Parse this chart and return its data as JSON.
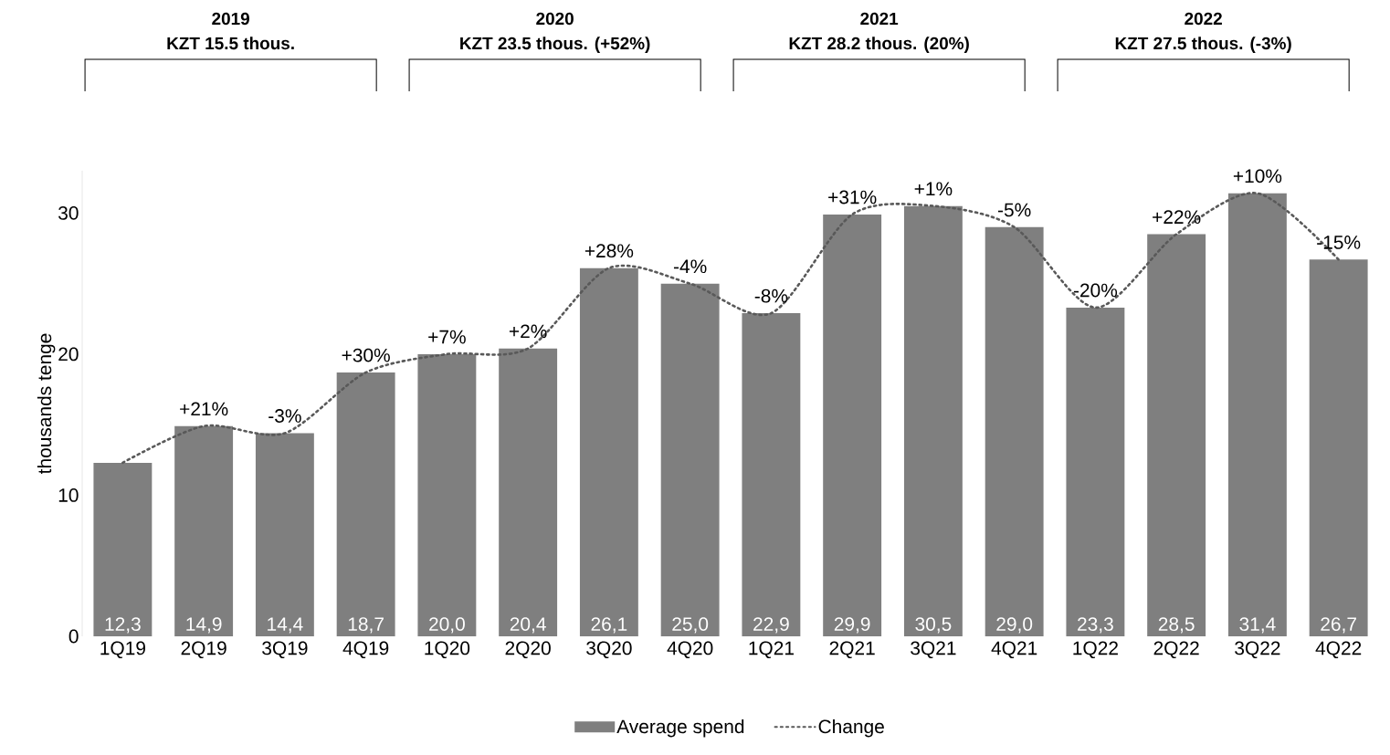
{
  "chart_data": {
    "type": "bar",
    "categories": [
      "1Q19",
      "2Q19",
      "3Q19",
      "4Q19",
      "1Q20",
      "2Q20",
      "3Q20",
      "4Q20",
      "1Q21",
      "2Q21",
      "3Q21",
      "4Q21",
      "1Q22",
      "2Q22",
      "3Q22",
      "4Q22"
    ],
    "series": [
      {
        "name": "Average spend",
        "color": "#7f7f7f",
        "values": [
          12.3,
          14.9,
          14.4,
          18.7,
          20.0,
          20.4,
          26.1,
          25.0,
          22.9,
          29.9,
          30.5,
          29.0,
          23.3,
          28.5,
          31.4,
          26.7
        ],
        "value_labels": [
          "12,3",
          "14,9",
          "14,4",
          "18,7",
          "20,0",
          "20,4",
          "26,1",
          "25,0",
          "22,9",
          "29,9",
          "30,5",
          "29,0",
          "23,3",
          "28,5",
          "31,4",
          "26,7"
        ]
      },
      {
        "name": "Change",
        "type": "line",
        "line_style": "dotted",
        "color": "#595959",
        "values": [
          12.3,
          14.9,
          14.4,
          18.7,
          20.0,
          20.4,
          26.1,
          25.0,
          22.9,
          29.9,
          30.5,
          29.0,
          23.3,
          28.5,
          31.4,
          26.7
        ]
      }
    ],
    "ylabel": "thousands tenge",
    "ylim": [
      0,
      33
    ],
    "yticks": [
      0,
      10,
      20,
      30
    ],
    "legend": "bottom",
    "annotations": [
      "2019",
      "KZT 15.5 thous.",
      "2020",
      "KZT 23.5 thous. (+52%)",
      "2021",
      "KZT 28.2 thous. (20%)",
      "2022",
      "KZT 27.5 thous. (-3%)",
      {
        "text": "+21%",
        "x": "2Q19",
        "y": 14.9
      },
      {
        "text": "-3%",
        "x": "3Q19",
        "y": 14.4
      },
      {
        "text": "+30%",
        "x": "4Q19",
        "y": 18.7
      },
      {
        "text": "+7%",
        "x": "1Q20",
        "y": 20.0
      },
      {
        "text": "+2%",
        "x": "2Q20",
        "y": 20.4
      },
      {
        "text": "+28%",
        "x": "3Q20",
        "y": 26.1
      },
      {
        "text": "-4%",
        "x": "4Q20",
        "y": 25.0
      },
      {
        "text": "-8%",
        "x": "1Q21",
        "y": 22.9
      },
      {
        "text": "+31%",
        "x": "2Q21",
        "y": 29.9
      },
      {
        "text": "+1%",
        "x": "3Q21",
        "y": 30.5
      },
      {
        "text": "-5%",
        "x": "4Q21",
        "y": 29.0
      },
      {
        "text": "-20%",
        "x": "1Q22",
        "y": 23.3
      },
      {
        "text": "+22%",
        "x": "2Q22",
        "y": 28.5
      },
      {
        "text": "+10%",
        "x": "3Q22",
        "y": 31.4
      },
      {
        "text": "-15%",
        "x": "4Q22",
        "y": 26.7
      }
    ]
  }
}
